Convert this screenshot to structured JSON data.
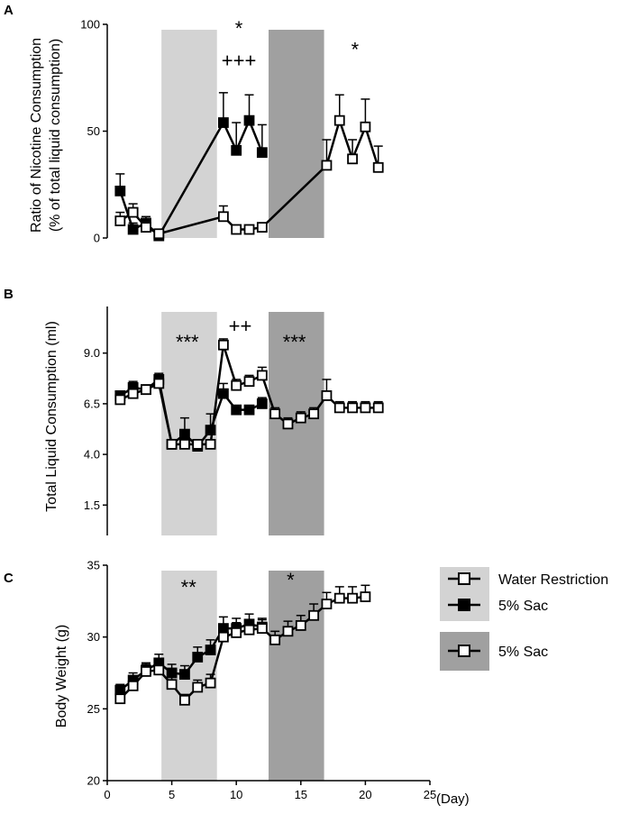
{
  "chart_data": [
    {
      "type": "line",
      "panel": "A",
      "ylabel_line1": "Ratio of Nicotine Consumption",
      "ylabel_line2": "(% of total liquid consumption)",
      "ylim": [
        0,
        100
      ],
      "yticks": [
        0,
        50,
        100
      ],
      "shading": [
        {
          "from": 4.2,
          "to": 8.5,
          "color": "#d3d3d3"
        },
        {
          "from": 12.5,
          "to": 16.8,
          "color": "#a0a0a0"
        }
      ],
      "series": [
        {
          "name": "5% Sac",
          "marker": "filled",
          "x": [
            1,
            2,
            3,
            4,
            9,
            10,
            11,
            12
          ],
          "y": [
            22,
            4,
            7,
            1,
            54,
            41,
            55,
            40
          ],
          "err": [
            8,
            3,
            3,
            1,
            14,
            13,
            12,
            13
          ]
        },
        {
          "name": "Water Restriction",
          "marker": "open",
          "x": [
            1,
            2,
            3,
            4,
            9,
            10,
            11,
            12,
            17,
            18,
            19,
            20,
            21
          ],
          "y": [
            8,
            12,
            5,
            2,
            10,
            4,
            4,
            5,
            34,
            55,
            37,
            52,
            33
          ],
          "err": [
            4,
            4,
            3,
            1,
            5,
            2,
            2,
            2,
            12,
            12,
            9,
            13,
            10
          ]
        }
      ],
      "annotations": [
        {
          "text": "*",
          "x": 10.2,
          "y": 95
        },
        {
          "text": "+++",
          "x": 10.2,
          "y": 80
        },
        {
          "text": "*",
          "x": 19.2,
          "y": 85
        }
      ]
    },
    {
      "type": "line",
      "panel": "B",
      "ylabel": "Total Liquid Consumption (ml)",
      "ylim": [
        0,
        11.3
      ],
      "yticks": [
        "1.5",
        "4.0",
        "6.5",
        "9.0"
      ],
      "shading": [
        {
          "from": 4.2,
          "to": 8.5,
          "color": "#d3d3d3"
        },
        {
          "from": 12.5,
          "to": 16.8,
          "color": "#a0a0a0"
        }
      ],
      "series": [
        {
          "name": "5% Sac",
          "marker": "filled",
          "x": [
            1,
            2,
            3,
            4,
            5,
            6,
            7,
            8,
            9,
            10,
            11,
            12
          ],
          "y": [
            6.9,
            7.3,
            7.2,
            7.7,
            4.5,
            5.0,
            4.4,
            5.2,
            7.0,
            6.2,
            6.2,
            6.5
          ],
          "err": [
            0.2,
            0.3,
            0.2,
            0.3,
            0.2,
            0.8,
            0.3,
            0.8,
            0.5,
            0.2,
            0.2,
            0.3
          ]
        },
        {
          "name": "Water Restriction",
          "marker": "open",
          "x": [
            1,
            2,
            3,
            4,
            5,
            6,
            7,
            8,
            9,
            10,
            11,
            12,
            13,
            14,
            15,
            16,
            17,
            18,
            19,
            20,
            21
          ],
          "y": [
            6.7,
            7.0,
            7.2,
            7.5,
            4.5,
            4.5,
            4.5,
            4.5,
            9.4,
            7.4,
            7.6,
            7.9,
            6.0,
            5.5,
            5.8,
            6.0,
            6.9,
            6.3,
            6.3,
            6.3,
            6.3
          ],
          "err": [
            0.2,
            0.2,
            0.2,
            0.3,
            0.2,
            0.2,
            0.2,
            0.2,
            0.3,
            0.3,
            0.3,
            0.4,
            0.3,
            0.3,
            0.3,
            0.3,
            0.8,
            0.3,
            0.3,
            0.3,
            0.3
          ]
        }
      ],
      "annotations": [
        {
          "text": "***",
          "x": 6.2,
          "y": 9.2
        },
        {
          "text": "++",
          "x": 10.3,
          "y": 10.0
        },
        {
          "text": "***",
          "x": 14.5,
          "y": 9.2
        }
      ]
    },
    {
      "type": "line",
      "panel": "C",
      "ylabel": "Body Weight  (g)",
      "xlabel": "(Day)",
      "xlim": [
        0,
        25
      ],
      "xticks": [
        0,
        5,
        10,
        15,
        20,
        25
      ],
      "ylim": [
        20,
        35
      ],
      "yticks": [
        20,
        25,
        30,
        35
      ],
      "shading": [
        {
          "from": 4.2,
          "to": 8.5,
          "color": "#d3d3d3"
        },
        {
          "from": 12.5,
          "to": 16.8,
          "color": "#a0a0a0"
        }
      ],
      "series": [
        {
          "name": "5% Sac",
          "marker": "filled",
          "x": [
            1,
            2,
            3,
            4,
            5,
            6,
            7,
            8,
            9,
            10,
            11,
            12
          ],
          "y": [
            26.3,
            27.0,
            27.7,
            28.2,
            27.5,
            27.4,
            28.6,
            29.1,
            30.6,
            30.6,
            30.9,
            30.7
          ],
          "err": [
            0.4,
            0.5,
            0.5,
            0.6,
            0.6,
            0.6,
            0.7,
            0.7,
            0.8,
            0.7,
            0.7,
            0.6
          ]
        },
        {
          "name": "Water Restriction",
          "marker": "open",
          "x": [
            1,
            2,
            3,
            4,
            5,
            6,
            7,
            8,
            9,
            10,
            11,
            12,
            13,
            14,
            15,
            16,
            17,
            18,
            19,
            20
          ],
          "y": [
            25.7,
            26.6,
            27.6,
            27.7,
            26.7,
            25.6,
            26.5,
            26.8,
            30.0,
            30.3,
            30.5,
            30.6,
            29.8,
            30.4,
            30.8,
            31.5,
            32.3,
            32.7,
            32.7,
            32.8
          ],
          "err": [
            0.4,
            0.5,
            0.5,
            0.6,
            0.5,
            0.4,
            0.5,
            0.6,
            0.7,
            0.7,
            0.7,
            0.6,
            0.6,
            0.7,
            0.7,
            0.8,
            0.8,
            0.8,
            0.8,
            0.8
          ]
        }
      ],
      "annotations": [
        {
          "text": "**",
          "x": 6.3,
          "y": 33.0
        },
        {
          "text": "*",
          "x": 14.2,
          "y": 33.5
        }
      ]
    }
  ],
  "legend": {
    "items": [
      {
        "label": "Water Restriction",
        "marker": "open",
        "bg": "#d3d3d3"
      },
      {
        "label": "5% Sac",
        "marker": "filled",
        "bg": "#d3d3d3"
      },
      {
        "label": "5% Sac",
        "marker": "open",
        "bg": "#a0a0a0"
      }
    ]
  },
  "colors": {
    "light_shade": "#d3d3d3",
    "dark_shade": "#a0a0a0",
    "line": "#000000"
  }
}
